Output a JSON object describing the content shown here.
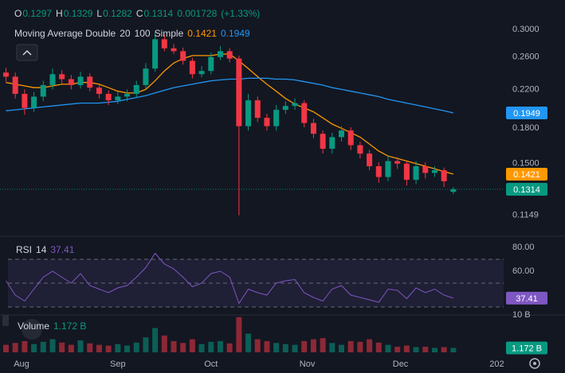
{
  "chart_data": [
    {
      "type": "candlestick",
      "ohlc_letters": [
        "O",
        "H",
        "L",
        "C"
      ],
      "change": 0.001728,
      "change_pct": {
        "value": 1.33,
        "label": "(+1.33%)"
      },
      "title": "Moving Average Double",
      "ma_method": "Simple",
      "log_scale": true,
      "grid": false,
      "up_color": "#089981",
      "down_color": "#f23645",
      "xlim": [
        -0.64,
        53.4
      ],
      "xticks": [
        {
          "value": 1.67,
          "label": "Aug"
        },
        {
          "value": 12,
          "label": "Sep"
        },
        {
          "value": 22,
          "label": "Oct"
        },
        {
          "value": 32.33,
          "label": "Nov"
        },
        {
          "value": 42.33,
          "label": "Dec"
        },
        {
          "value": 52.67,
          "label": "202"
        }
      ],
      "ylim": [
        0.104,
        0.349
      ],
      "yticks": [
        {
          "value": 0.3,
          "label": "0.3000"
        },
        {
          "value": 0.26,
          "label": "0.2600"
        },
        {
          "value": 0.22,
          "label": "0.2200"
        },
        {
          "value": 0.18,
          "label": "0.1800"
        },
        {
          "value": 0.15,
          "label": "0.1500"
        },
        {
          "value": 0.1149,
          "label": "0.1149"
        }
      ],
      "open": [
        0.24,
        0.235,
        0.215,
        0.2,
        0.212,
        0.225,
        0.238,
        0.232,
        0.225,
        0.235,
        0.222,
        0.215,
        0.208,
        0.212,
        0.215,
        0.225,
        0.245,
        0.285,
        0.272,
        0.268,
        0.255,
        0.238,
        0.242,
        0.26,
        0.268,
        0.258,
        0.182,
        0.208,
        0.19,
        0.182,
        0.198,
        0.202,
        0.205,
        0.185,
        0.175,
        0.162,
        0.172,
        0.178,
        0.165,
        0.158,
        0.148,
        0.14,
        0.152,
        0.15,
        0.138,
        0.148,
        0.143,
        0.145,
        0.1297
      ],
      "high": [
        0.246,
        0.24,
        0.22,
        0.217,
        0.23,
        0.245,
        0.243,
        0.237,
        0.241,
        0.239,
        0.226,
        0.219,
        0.217,
        0.22,
        0.23,
        0.252,
        0.295,
        0.292,
        0.278,
        0.273,
        0.259,
        0.248,
        0.266,
        0.275,
        0.272,
        0.262,
        0.215,
        0.212,
        0.194,
        0.203,
        0.207,
        0.21,
        0.208,
        0.189,
        0.178,
        0.176,
        0.182,
        0.181,
        0.168,
        0.161,
        0.151,
        0.156,
        0.155,
        0.152,
        0.152,
        0.151,
        0.148,
        0.147,
        0.1329
      ],
      "low": [
        0.229,
        0.21,
        0.193,
        0.196,
        0.207,
        0.22,
        0.227,
        0.22,
        0.221,
        0.218,
        0.21,
        0.203,
        0.204,
        0.207,
        0.211,
        0.221,
        0.241,
        0.268,
        0.264,
        0.25,
        0.233,
        0.234,
        0.238,
        0.256,
        0.253,
        0.1149,
        0.178,
        0.186,
        0.178,
        0.178,
        0.194,
        0.198,
        0.181,
        0.171,
        0.158,
        0.158,
        0.168,
        0.161,
        0.154,
        0.145,
        0.136,
        0.137,
        0.146,
        0.134,
        0.135,
        0.139,
        0.14,
        0.133,
        0.1282
      ],
      "close": [
        0.235,
        0.215,
        0.2,
        0.212,
        0.225,
        0.238,
        0.232,
        0.225,
        0.235,
        0.222,
        0.215,
        0.208,
        0.212,
        0.215,
        0.225,
        0.245,
        0.285,
        0.272,
        0.268,
        0.255,
        0.238,
        0.242,
        0.26,
        0.268,
        0.258,
        0.182,
        0.208,
        0.19,
        0.182,
        0.198,
        0.202,
        0.205,
        0.185,
        0.175,
        0.162,
        0.172,
        0.178,
        0.165,
        0.158,
        0.148,
        0.14,
        0.152,
        0.15,
        0.138,
        0.148,
        0.143,
        0.145,
        0.137,
        0.1314
      ],
      "overlays": [
        {
          "period": 20,
          "color": "#ff9800",
          "values": [
            0.228,
            0.226,
            0.224,
            0.222,
            0.222,
            0.224,
            0.226,
            0.226,
            0.228,
            0.228,
            0.226,
            0.222,
            0.218,
            0.216,
            0.216,
            0.22,
            0.23,
            0.242,
            0.252,
            0.258,
            0.262,
            0.262,
            0.262,
            0.264,
            0.264,
            0.255,
            0.245,
            0.235,
            0.226,
            0.218,
            0.21,
            0.204,
            0.2,
            0.196,
            0.19,
            0.184,
            0.18,
            0.176,
            0.172,
            0.166,
            0.16,
            0.156,
            0.154,
            0.152,
            0.15,
            0.148,
            0.146,
            0.144,
            0.1421
          ]
        },
        {
          "period": 100,
          "color": "#2196f3",
          "values": [
            0.197,
            0.198,
            0.199,
            0.2,
            0.201,
            0.202,
            0.203,
            0.204,
            0.205,
            0.205,
            0.205,
            0.206,
            0.207,
            0.209,
            0.211,
            0.213,
            0.216,
            0.219,
            0.222,
            0.224,
            0.226,
            0.228,
            0.23,
            0.231,
            0.232,
            0.232,
            0.233,
            0.233,
            0.233,
            0.232,
            0.232,
            0.231,
            0.229,
            0.227,
            0.225,
            0.222,
            0.22,
            0.218,
            0.216,
            0.214,
            0.212,
            0.209,
            0.207,
            0.205,
            0.203,
            0.201,
            0.199,
            0.197,
            0.1949
          ]
        }
      ]
    },
    {
      "type": "line",
      "title": "RSI",
      "length": 14,
      "color": "#7e57c2",
      "levels": [
        30,
        50,
        70
      ],
      "ylim": [
        23.33,
        90
      ],
      "yticks": [
        {
          "value": 80,
          "label": "80.00"
        },
        {
          "value": 60,
          "label": "60.00"
        }
      ],
      "values": [
        52,
        40,
        35,
        45,
        55,
        60,
        55,
        50,
        58,
        48,
        45,
        42,
        46,
        48,
        55,
        63,
        75,
        66,
        62,
        55,
        47,
        50,
        58,
        60,
        55,
        33,
        45,
        42,
        40,
        50,
        52,
        53,
        42,
        38,
        35,
        45,
        48,
        40,
        38,
        36,
        34,
        45,
        44,
        37,
        46,
        42,
        45,
        40,
        37.41
      ]
    },
    {
      "type": "bar",
      "title": "Volume",
      "ylim": [
        0,
        10
      ],
      "yticks": [
        {
          "value": 10,
          "label": "10 B"
        }
      ],
      "last_value": {
        "value": 1.172,
        "label": "1.172 B"
      },
      "values": [
        2.0,
        2.5,
        3.0,
        2.2,
        2.8,
        3.5,
        2.6,
        2.0,
        3.2,
        2.4,
        2.0,
        1.8,
        2.2,
        1.8,
        2.6,
        4.0,
        6.5,
        4.5,
        3.0,
        2.5,
        3.5,
        2.2,
        2.8,
        3.0,
        2.4,
        9.4,
        5.0,
        3.5,
        3.0,
        2.5,
        2.2,
        2.0,
        3.0,
        3.5,
        3.8,
        2.5,
        2.0,
        3.0,
        2.8,
        3.5,
        2.6,
        2.0,
        1.5,
        1.8,
        1.4,
        1.5,
        1.2,
        1.4,
        1.172
      ]
    }
  ]
}
